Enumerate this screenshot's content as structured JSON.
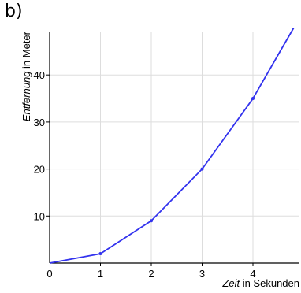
{
  "panel_label": "b)",
  "chart_data": {
    "type": "line",
    "title": "",
    "xlabel_italic": "Zeit",
    "xlabel_rest": " in Sekunden",
    "ylabel_italic": "Entfernung",
    "ylabel_rest": " in Meter",
    "x_ticks": [
      0,
      1,
      2,
      3,
      4
    ],
    "y_ticks": [
      10,
      20,
      30,
      40
    ],
    "xlim": [
      0,
      5
    ],
    "ylim": [
      0,
      50
    ],
    "grid": true,
    "series": [
      {
        "x": [
          0,
          1,
          2,
          3,
          4,
          4.8
        ],
        "y": [
          0,
          2,
          9,
          20,
          35,
          50
        ]
      }
    ],
    "colors": {
      "line": "#3333ee",
      "grid": "#dddddd",
      "axis": "#000000"
    }
  }
}
